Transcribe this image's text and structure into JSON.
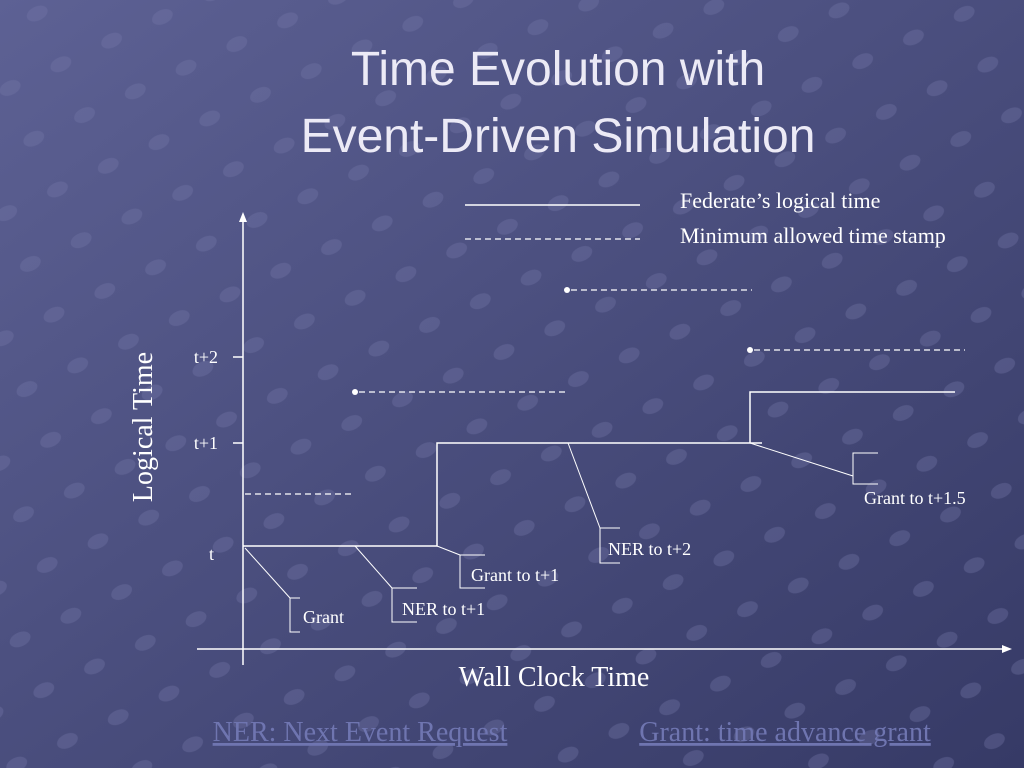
{
  "title": {
    "lines": [
      "Time Evolution with",
      "Event-Driven Simulation"
    ]
  },
  "legend": [
    {
      "label": "Federate’s logical time"
    },
    {
      "label": "Minimum allowed time stamp"
    }
  ],
  "axes": {
    "y_label": "Logical Time",
    "x_label": "Wall Clock Time"
  },
  "ticks": [
    "t+2",
    "t+1",
    "t"
  ],
  "callouts": [
    "Grant",
    "NER to t+1",
    "Grant to t+1",
    "NER to t+2",
    "Grant to t+1.5"
  ],
  "footer": [
    "NER: Next Event Request",
    "Grant: time advance grant"
  ]
}
